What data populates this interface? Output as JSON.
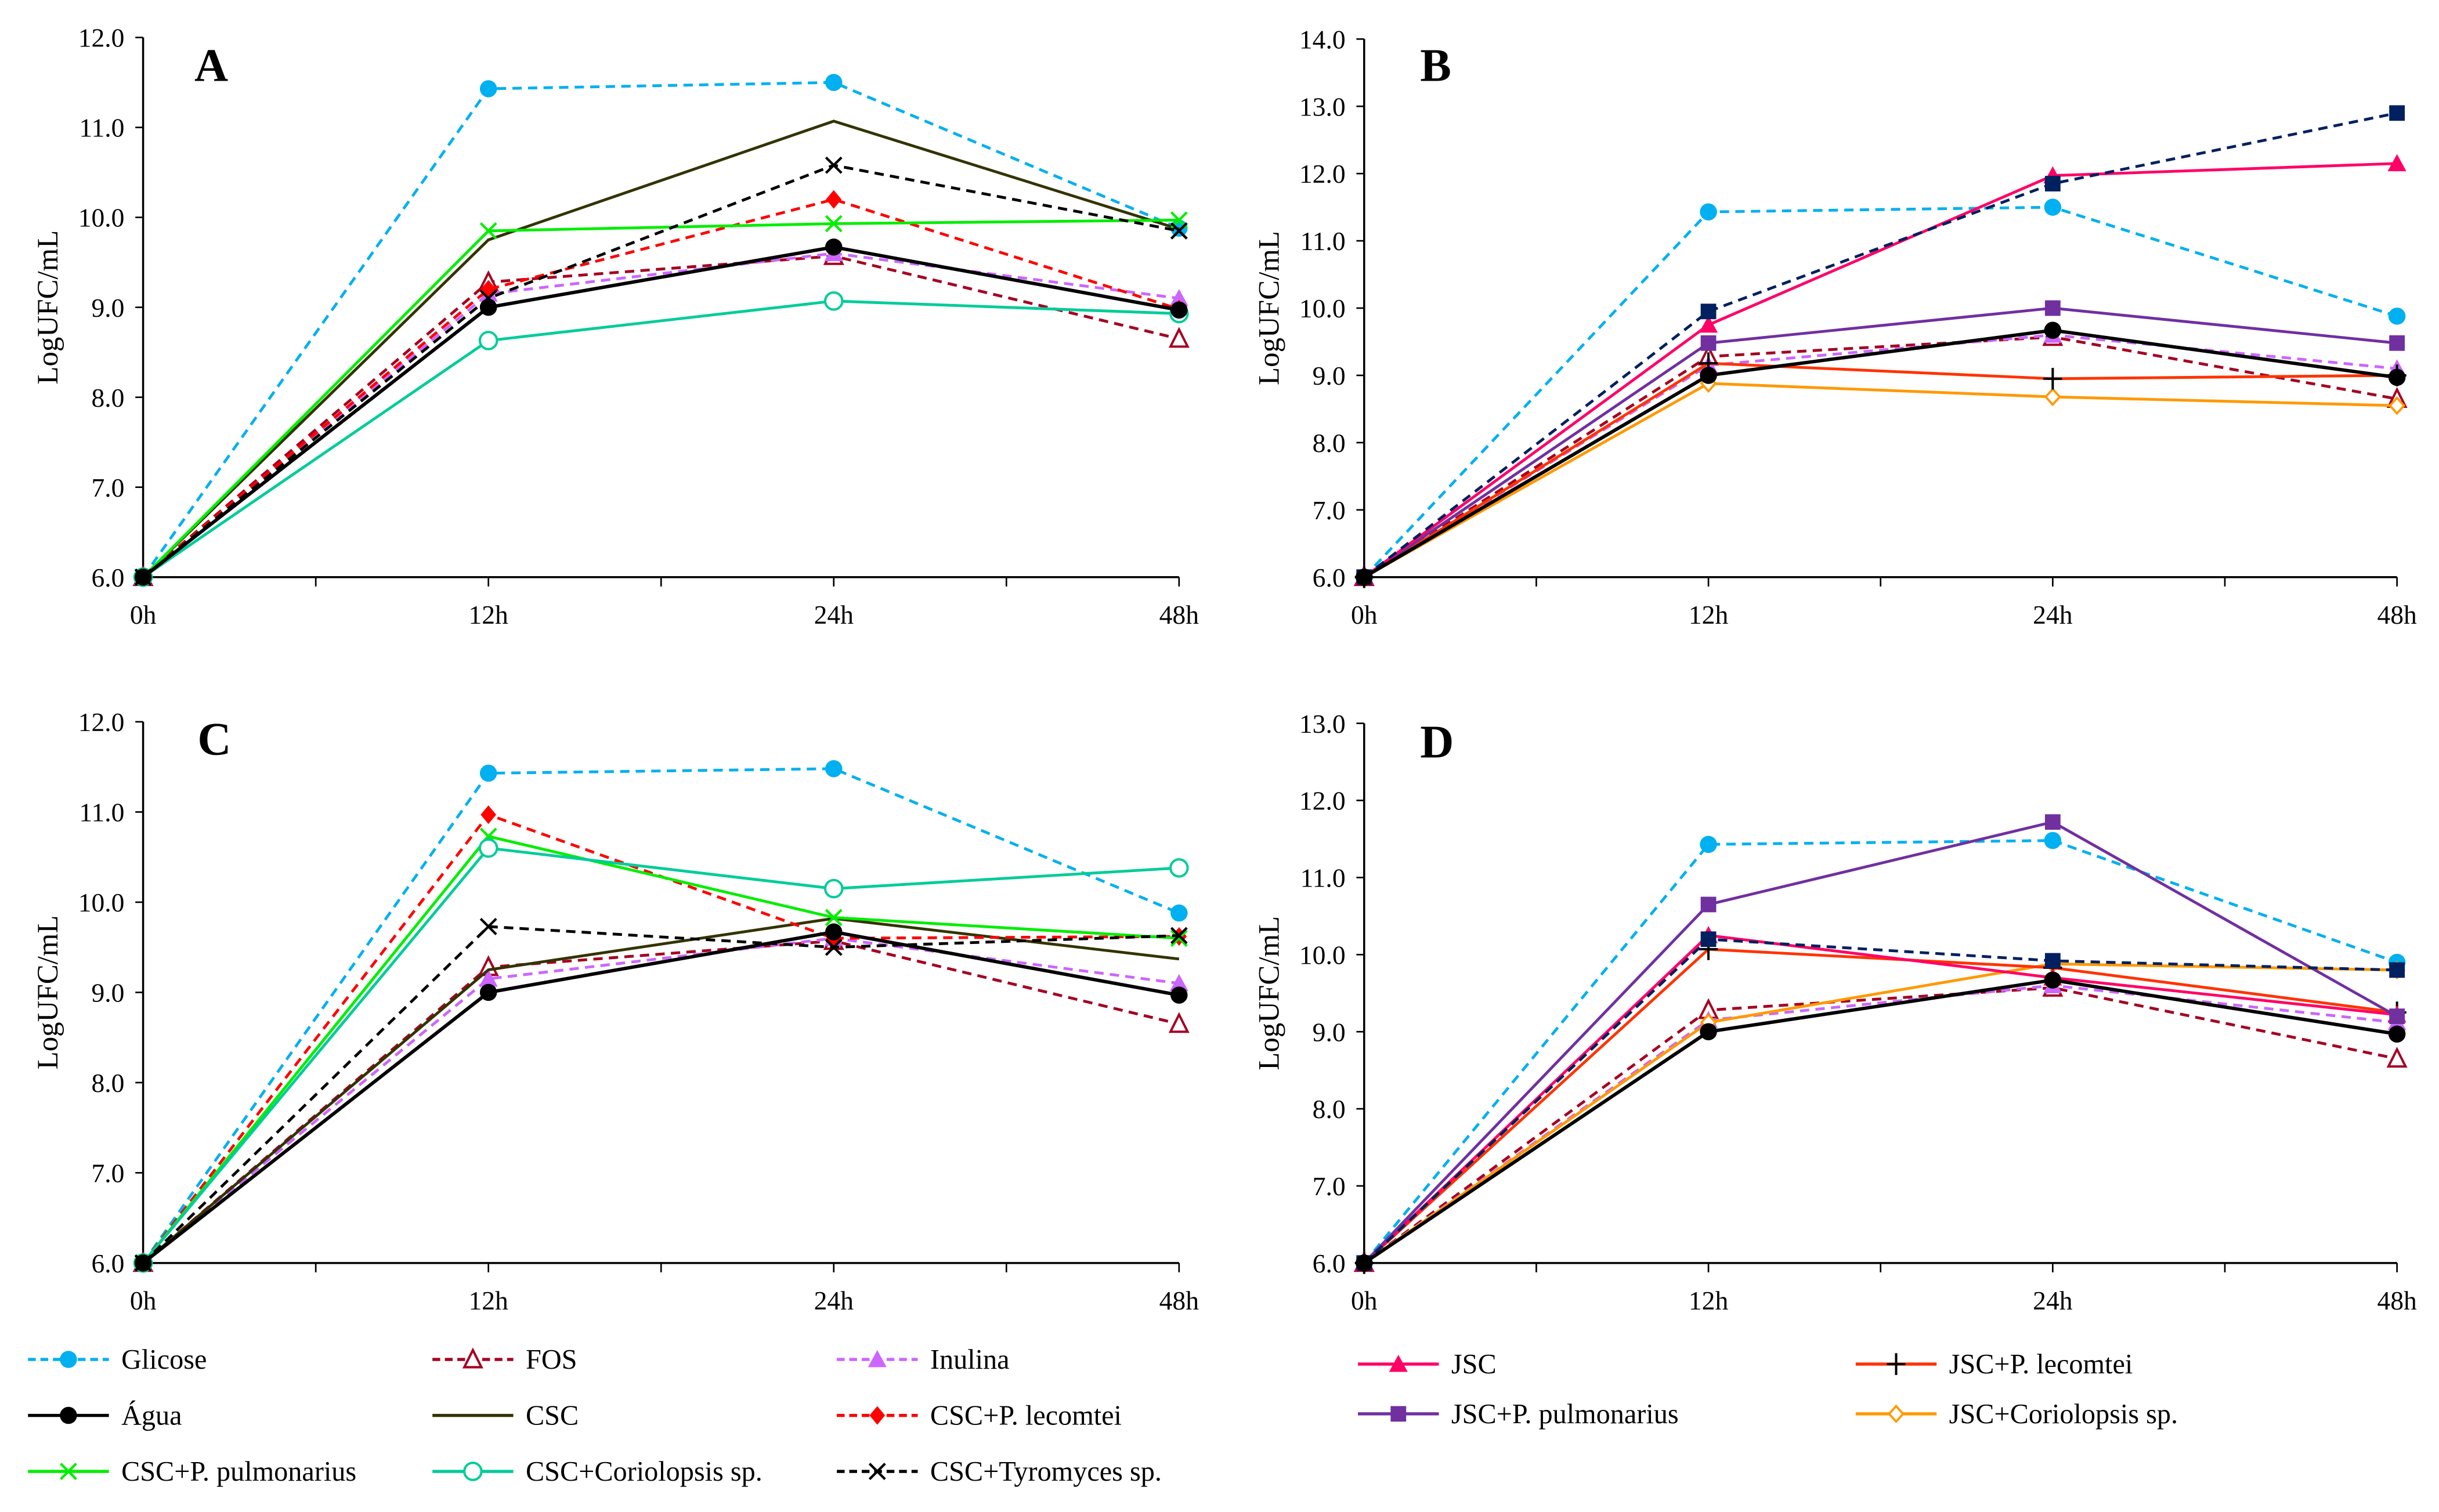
{
  "series_styles": {
    "glicose": {
      "name": "Glicose",
      "color": "#00B0F0",
      "dash": true,
      "marker": "circle-filled"
    },
    "fos": {
      "name": "FOS",
      "color": "#A50021",
      "dash": true,
      "marker": "triangle-open"
    },
    "inulina": {
      "name": "Inulina",
      "color": "#CC66FF",
      "dash": true,
      "marker": "triangle-filled"
    },
    "agua": {
      "name": "Água",
      "color": "#000000",
      "dash": false,
      "marker": "circle-filled"
    },
    "csc": {
      "name": "CSC",
      "color": "#333300",
      "dash": false,
      "marker": "none"
    },
    "csc_lec": {
      "name": "CSC+P. lecomtei",
      "color": "#FF0000",
      "dash": true,
      "marker": "diamond-filled"
    },
    "csc_pul": {
      "name": "CSC+P. pulmonarius",
      "color": "#00EE00",
      "dash": false,
      "marker": "x"
    },
    "csc_cor": {
      "name": "CSC+Coriolopsis sp.",
      "color": "#00CC99",
      "dash": false,
      "marker": "circle-open"
    },
    "csc_tyr": {
      "name": "CSC+Tyromyces sp.",
      "color": "#000000",
      "dash": true,
      "marker": "x"
    },
    "jsc": {
      "name": "JSC",
      "color": "#FF0066",
      "dash": false,
      "marker": "triangle-filled"
    },
    "jsc_lec": {
      "name": "JSC+P. lecomtei",
      "color": "#FF3300",
      "dash": false,
      "marker": "plus"
    },
    "jsc_pul": {
      "name": "JSC+P. pulmonarius",
      "color": "#7030A0",
      "dash": false,
      "marker": "square-filled"
    },
    "jsc_cor": {
      "name": "JSC+Coriolopsis sp.",
      "color": "#FF9900",
      "dash": false,
      "marker": "diamond-open"
    },
    "navy": {
      "name": "",
      "color": "#002060",
      "dash": true,
      "marker": "square-filled"
    }
  },
  "legend": {
    "left": [
      "glicose",
      "fos",
      "inulina",
      "agua",
      "csc",
      "csc_lec",
      "csc_pul",
      "csc_cor",
      "csc_tyr"
    ],
    "right": [
      "jsc",
      "jsc_lec",
      "jsc_pul",
      "jsc_cor"
    ]
  },
  "chart_data": [
    {
      "type": "line",
      "panel": "A",
      "ylabel": "LogUFC/mL",
      "categories": [
        "0h",
        "12h",
        "24h",
        "48h"
      ],
      "ylim": [
        6.0,
        12.0
      ],
      "ytick_step": 1.0,
      "series": [
        {
          "key": "glicose",
          "values": [
            6.0,
            11.43,
            11.5,
            9.88
          ]
        },
        {
          "key": "fos",
          "values": [
            6.0,
            9.28,
            9.57,
            8.65
          ]
        },
        {
          "key": "inulina",
          "values": [
            6.0,
            9.15,
            9.6,
            9.1
          ]
        },
        {
          "key": "csc",
          "values": [
            6.0,
            9.75,
            11.07,
            9.87
          ]
        },
        {
          "key": "csc_lec",
          "values": [
            6.0,
            9.2,
            10.2,
            8.98
          ]
        },
        {
          "key": "csc_pul",
          "values": [
            6.0,
            9.85,
            9.93,
            9.97
          ]
        },
        {
          "key": "csc_cor",
          "values": [
            6.0,
            8.63,
            9.07,
            8.93
          ]
        },
        {
          "key": "csc_tyr",
          "values": [
            6.0,
            9.1,
            10.58,
            9.85
          ]
        },
        {
          "key": "agua",
          "values": [
            6.0,
            9.0,
            9.67,
            8.97
          ]
        }
      ]
    },
    {
      "type": "line",
      "panel": "B",
      "ylabel": "LogUFC/mL",
      "categories": [
        "0h",
        "12h",
        "24h",
        "48h"
      ],
      "ylim": [
        6.0,
        14.0
      ],
      "ytick_step": 1.0,
      "series": [
        {
          "key": "glicose",
          "values": [
            6.0,
            11.43,
            11.5,
            9.88
          ]
        },
        {
          "key": "fos",
          "values": [
            6.0,
            9.28,
            9.57,
            8.65
          ]
        },
        {
          "key": "inulina",
          "values": [
            6.0,
            9.15,
            9.6,
            9.1
          ]
        },
        {
          "key": "jsc_cor",
          "values": [
            6.0,
            8.88,
            8.68,
            8.55
          ]
        },
        {
          "key": "jsc_lec",
          "values": [
            6.0,
            9.18,
            8.95,
            9.0
          ]
        },
        {
          "key": "jsc_pul",
          "values": [
            6.0,
            9.48,
            10.0,
            9.48
          ]
        },
        {
          "key": "jsc",
          "values": [
            6.0,
            9.75,
            11.97,
            12.15
          ]
        },
        {
          "key": "navy",
          "values": [
            6.0,
            9.95,
            11.85,
            12.9
          ]
        },
        {
          "key": "agua",
          "values": [
            6.0,
            9.0,
            9.67,
            8.97
          ]
        }
      ]
    },
    {
      "type": "line",
      "panel": "C",
      "ylabel": "LogUFC/mL",
      "categories": [
        "0h",
        "12h",
        "24h",
        "48h"
      ],
      "ylim": [
        6.0,
        12.0
      ],
      "ytick_step": 1.0,
      "series": [
        {
          "key": "glicose",
          "values": [
            6.0,
            11.43,
            11.48,
            9.88
          ]
        },
        {
          "key": "fos",
          "values": [
            6.0,
            9.28,
            9.57,
            8.65
          ]
        },
        {
          "key": "inulina",
          "values": [
            6.0,
            9.15,
            9.6,
            9.1
          ]
        },
        {
          "key": "csc",
          "values": [
            6.0,
            9.25,
            9.82,
            9.37
          ]
        },
        {
          "key": "csc_lec",
          "values": [
            6.0,
            10.97,
            9.6,
            9.62
          ]
        },
        {
          "key": "csc_pul",
          "values": [
            6.0,
            10.73,
            9.83,
            9.6
          ]
        },
        {
          "key": "csc_cor",
          "values": [
            6.0,
            10.6,
            10.15,
            10.38
          ]
        },
        {
          "key": "csc_tyr",
          "values": [
            6.0,
            9.73,
            9.5,
            9.63
          ]
        },
        {
          "key": "agua",
          "values": [
            6.0,
            9.0,
            9.67,
            8.97
          ]
        }
      ]
    },
    {
      "type": "line",
      "panel": "D",
      "ylabel": "LogUFC/mL",
      "categories": [
        "0h",
        "12h",
        "24h",
        "48h"
      ],
      "ylim": [
        6.0,
        13.0
      ],
      "ytick_step": 1.0,
      "series": [
        {
          "key": "glicose",
          "values": [
            6.0,
            11.43,
            11.48,
            9.9
          ]
        },
        {
          "key": "fos",
          "values": [
            6.0,
            9.28,
            9.57,
            8.65
          ]
        },
        {
          "key": "inulina",
          "values": [
            6.0,
            9.15,
            9.6,
            9.12
          ]
        },
        {
          "key": "jsc_cor",
          "values": [
            6.0,
            9.12,
            9.88,
            9.8
          ]
        },
        {
          "key": "jsc_lec",
          "values": [
            6.0,
            10.07,
            9.83,
            9.25
          ]
        },
        {
          "key": "jsc",
          "values": [
            6.0,
            10.25,
            9.7,
            9.22
          ]
        },
        {
          "key": "jsc_pul",
          "values": [
            6.0,
            10.65,
            11.72,
            9.2
          ]
        },
        {
          "key": "navy",
          "values": [
            6.0,
            10.2,
            9.92,
            9.8
          ]
        },
        {
          "key": "agua",
          "values": [
            6.0,
            9.0,
            9.67,
            8.97
          ]
        }
      ]
    }
  ]
}
